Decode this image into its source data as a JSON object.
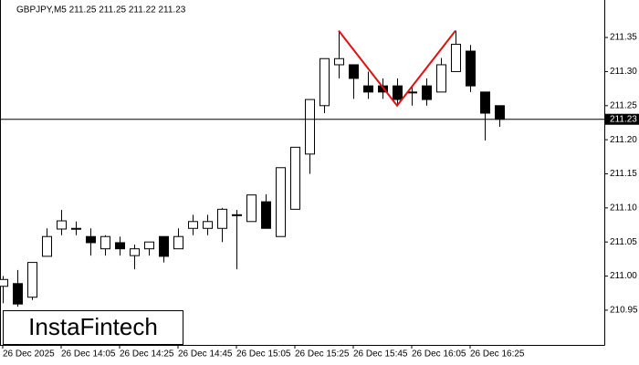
{
  "chart_data": {
    "type": "candlestick",
    "header": "GBPJPY,M5  211.25 211.25 211.22 211.23",
    "logo": "InstaFintech",
    "categories": [
      "26 Dec 2025",
      null,
      null,
      null,
      "26 Dec 14:05",
      null,
      null,
      null,
      "26 Dec 14:25",
      null,
      null,
      null,
      "26 Dec 14:45",
      null,
      null,
      null,
      "26 Dec 15:05",
      null,
      null,
      null,
      "26 Dec 15:25",
      null,
      null,
      null,
      "26 Dec 15:45",
      null,
      null,
      null,
      "26 Dec 16:05",
      null,
      null,
      null,
      "26 Dec 16:25",
      null,
      null
    ],
    "open": [
      210.985,
      210.989,
      210.969,
      211.029,
      211.069,
      211.07,
      211.058,
      211.04,
      211.049,
      211.03,
      211.04,
      211.058,
      211.04,
      211.07,
      211.07,
      211.07,
      211.09,
      211.08,
      211.109,
      211.058,
      211.098,
      211.179,
      211.25,
      211.31,
      211.31,
      211.279,
      211.279,
      211.279,
      211.27,
      211.279,
      211.27,
      211.3,
      211.33,
      211.27,
      211.25
    ],
    "high": [
      211.0,
      211.009,
      211.02,
      211.07,
      211.097,
      211.08,
      211.07,
      211.06,
      211.058,
      211.046,
      211.05,
      211.058,
      211.07,
      211.09,
      211.09,
      211.1,
      211.097,
      211.119,
      211.12,
      211.159,
      211.189,
      211.259,
      211.319,
      211.36,
      211.31,
      211.3,
      211.29,
      211.29,
      211.279,
      211.29,
      211.32,
      211.36,
      211.339,
      211.27,
      211.25
    ],
    "low": [
      210.96,
      210.955,
      210.965,
      211.029,
      211.06,
      211.06,
      211.03,
      211.03,
      211.03,
      211.01,
      211.03,
      211.02,
      211.04,
      211.06,
      211.06,
      211.05,
      211.01,
      211.08,
      211.07,
      211.058,
      211.098,
      211.15,
      211.239,
      211.29,
      211.26,
      211.26,
      211.26,
      211.25,
      211.25,
      211.25,
      211.27,
      211.3,
      211.27,
      211.199,
      211.219
    ],
    "close": [
      210.995,
      210.959,
      211.02,
      211.058,
      211.081,
      211.07,
      211.049,
      211.058,
      211.04,
      211.04,
      211.05,
      211.029,
      211.058,
      211.08,
      211.08,
      211.098,
      211.09,
      211.119,
      211.07,
      211.159,
      211.189,
      211.259,
      211.319,
      211.319,
      211.29,
      211.27,
      211.27,
      211.259,
      211.27,
      211.259,
      211.31,
      211.34,
      211.279,
      211.239,
      211.23
    ],
    "up_color": "#ffffff",
    "down_color": "#000000",
    "pattern": {
      "color": "#e01010",
      "points": [
        {
          "index": 23,
          "value": 211.36
        },
        {
          "index": 27,
          "value": 211.25
        },
        {
          "index": 31,
          "value": 211.36
        }
      ]
    },
    "last_price": 211.23,
    "ylim": [
      210.899,
      211.405
    ],
    "yticks": [
      210.95,
      {
        "value": 211.0,
        "label": "211.00"
      },
      211.05,
      {
        "value": 211.1,
        "label": "211.10"
      },
      211.15,
      {
        "value": 211.2,
        "label": "211.20"
      },
      211.25,
      {
        "value": 211.3,
        "label": "211.30"
      },
      211.35
    ]
  }
}
